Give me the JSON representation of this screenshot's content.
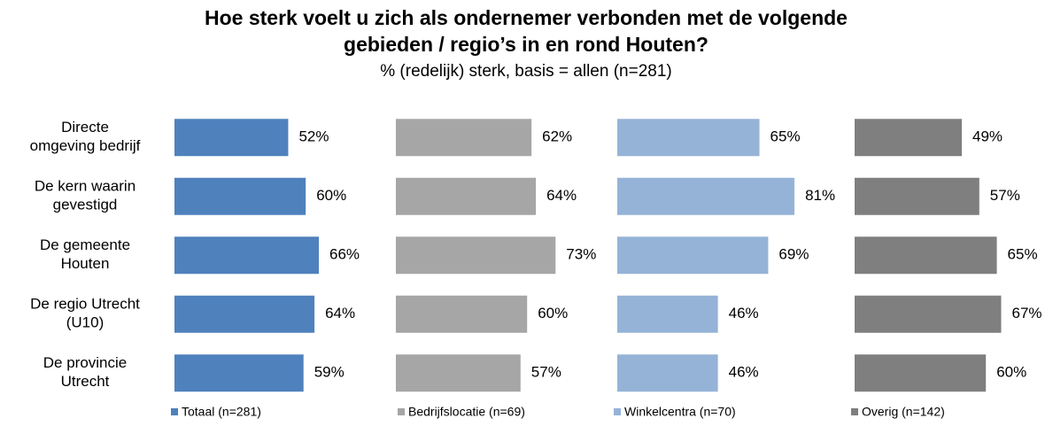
{
  "chart_data": {
    "type": "bar",
    "title": [
      "Hoe sterk voelt u zich als ondernemer verbonden met de volgende",
      "gebieden / regio’s in en rond Houten?"
    ],
    "subtitle": "% (redelijk) sterk, basis = allen (n=281)",
    "categories": [
      [
        "Directe",
        "omgeving bedrijf"
      ],
      [
        "De kern waarin",
        "gevestigd"
      ],
      [
        "De gemeente",
        "Houten"
      ],
      [
        "De regio Utrecht",
        "(U10)"
      ],
      [
        "De provincie",
        "Utrecht"
      ]
    ],
    "series": [
      {
        "name": "Totaal (n=281)",
        "color": "#4f81bd",
        "values": [
          52,
          60,
          66,
          64,
          59
        ],
        "value_labels": [
          "52%",
          "60%",
          "66%",
          "64%",
          "59%"
        ]
      },
      {
        "name": "Bedrijfslocatie (n=69)",
        "color": "#a6a6a6",
        "values": [
          62,
          64,
          73,
          60,
          57
        ],
        "value_labels": [
          "62%",
          "64%",
          "73%",
          "60%",
          "57%"
        ]
      },
      {
        "name": "Winkelcentra (n=70)",
        "color": "#95b3d7",
        "values": [
          65,
          81,
          69,
          46,
          46
        ],
        "value_labels": [
          "65%",
          "81%",
          "69%",
          "46%",
          "46%"
        ]
      },
      {
        "name": "Overig (n=142)",
        "color": "#7f7f7f",
        "values": [
          49,
          57,
          65,
          67,
          60
        ],
        "value_labels": [
          "49%",
          "57%",
          "65%",
          "67%",
          "60%"
        ]
      }
    ]
  }
}
